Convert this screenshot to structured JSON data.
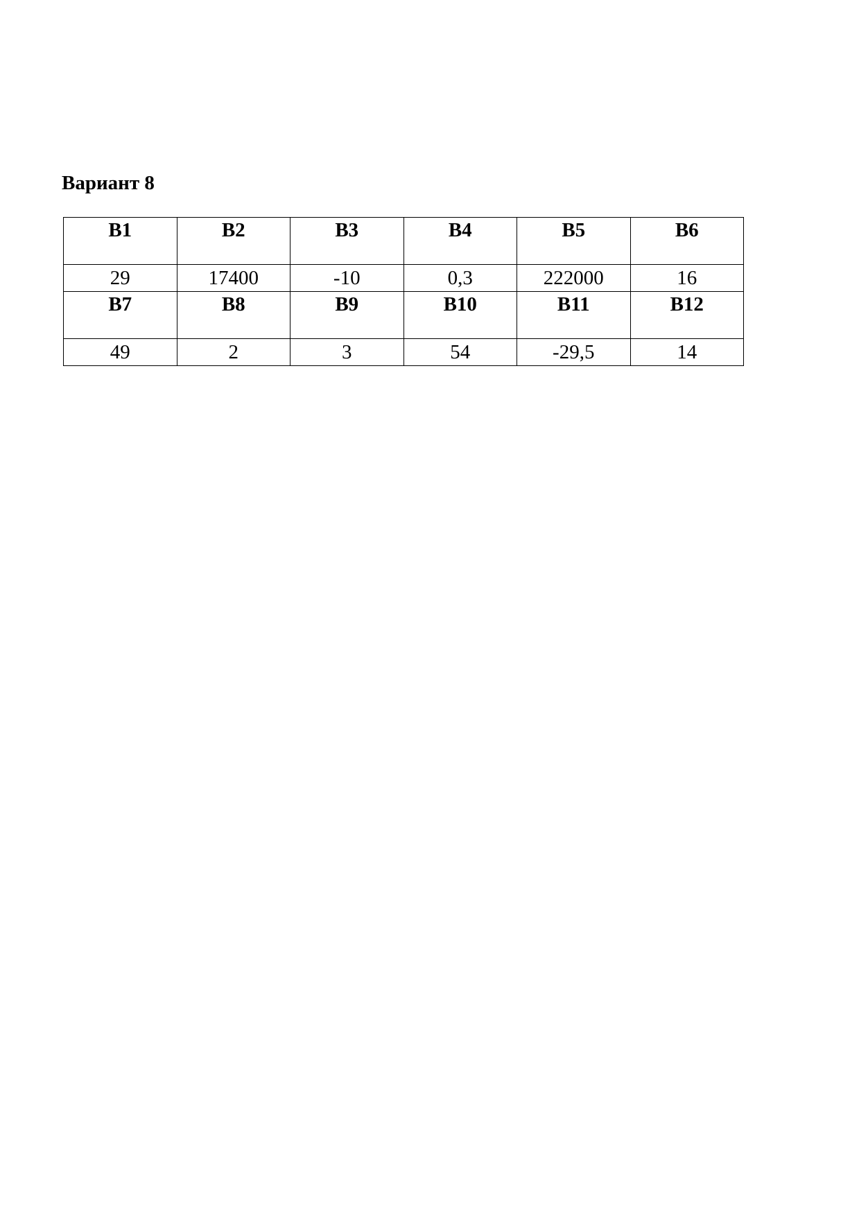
{
  "title": "Вариант 8",
  "rows": [
    {
      "headers": [
        "B1",
        "B2",
        "B3",
        "B4",
        "B5",
        "B6"
      ],
      "values": [
        "29",
        "17400",
        "-10",
        "0,3",
        "222000",
        "16"
      ]
    },
    {
      "headers": [
        "B7",
        "B8",
        "B9",
        "B10",
        "B11",
        "B12"
      ],
      "values": [
        "49",
        "2",
        "3",
        "54",
        "-29,5",
        "14"
      ]
    }
  ]
}
